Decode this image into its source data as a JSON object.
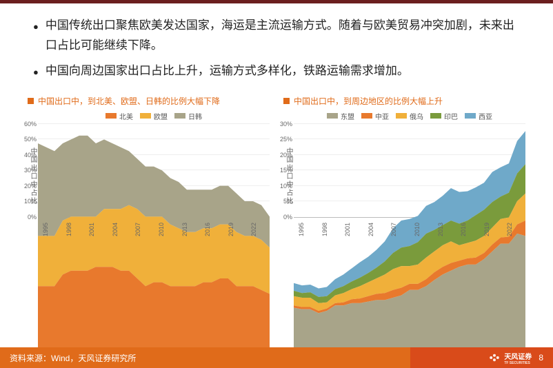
{
  "bullets": [
    "中国传统出口聚焦欧美发达国家，海运是主流运输方式。随着与欧美贸易冲突加剧，未来出口占比可能继续下降。",
    "中国向周边国家出口占比上升，运输方式多样化，铁路运输需求增加。"
  ],
  "chart1": {
    "title": "中国出口中，到北美、欧盟、日韩的比例大幅下降",
    "ylabel": "中国出口中占比",
    "type": "area-stacked",
    "years": [
      1995,
      1996,
      1997,
      1998,
      1999,
      2000,
      2001,
      2002,
      2003,
      2004,
      2005,
      2006,
      2007,
      2008,
      2009,
      2010,
      2011,
      2012,
      2013,
      2014,
      2015,
      2016,
      2017,
      2018,
      2019,
      2020,
      2021,
      2022,
      2023
    ],
    "xticks": [
      1995,
      1998,
      2001,
      2004,
      2007,
      2010,
      2013,
      2016,
      2019,
      2022
    ],
    "ylim": [
      0,
      60
    ],
    "ytick_step": 10,
    "ytick_suffix": "%",
    "grid_color": "#eeeeee",
    "series": [
      {
        "name": "北美",
        "color": "#e8792d",
        "values": [
          18,
          18,
          18,
          21,
          22,
          22,
          22,
          23,
          23,
          23,
          22,
          22,
          20,
          18,
          19,
          19,
          18,
          18,
          18,
          18,
          19,
          19,
          20,
          20,
          18,
          18,
          18,
          17,
          16
        ]
      },
      {
        "name": "欧盟",
        "color": "#f0b03a",
        "values": [
          13,
          13,
          13,
          14,
          14,
          14,
          14,
          13,
          15,
          15,
          16,
          17,
          18,
          18,
          17,
          17,
          16,
          15,
          14,
          14,
          14,
          14,
          14,
          14,
          14,
          13,
          13,
          13,
          12
        ]
      },
      {
        "name": "日韩",
        "color": "#a8a489",
        "values": [
          24,
          23,
          22,
          20,
          20,
          21,
          21,
          19,
          18,
          17,
          16,
          14,
          13,
          13,
          13,
          12,
          12,
          12,
          11,
          11,
          10,
          10,
          10,
          10,
          10,
          9,
          9,
          9,
          8
        ]
      }
    ]
  },
  "chart2": {
    "title": "中国出口中，到周边地区的比例大幅上升",
    "ylabel": "中国出口中占比",
    "type": "area-stacked",
    "years": [
      1995,
      1996,
      1997,
      1998,
      1999,
      2000,
      2001,
      2002,
      2003,
      2004,
      2005,
      2006,
      2007,
      2008,
      2009,
      2010,
      2011,
      2012,
      2013,
      2014,
      2015,
      2016,
      2017,
      2018,
      2019,
      2020,
      2021,
      2022,
      2023
    ],
    "xticks": [
      1995,
      1998,
      2001,
      2004,
      2007,
      2010,
      2013,
      2016,
      2019,
      2022
    ],
    "ylim": [
      0,
      30
    ],
    "ytick_step": 5,
    "ytick_suffix": "%",
    "grid_color": "#eeeeee",
    "series": [
      {
        "name": "东盟",
        "color": "#a8a489",
        "values": [
          6.2,
          6.0,
          6.0,
          5.5,
          5.8,
          6.5,
          6.5,
          6.8,
          6.8,
          7.0,
          7.2,
          7.2,
          7.5,
          7.8,
          8.5,
          8.5,
          9.0,
          9.8,
          10.5,
          11.0,
          11.5,
          11.8,
          11.8,
          12.5,
          13.5,
          14.5,
          14.5,
          15.8,
          15.5
        ]
      },
      {
        "name": "中亚",
        "color": "#e8792d",
        "values": [
          0.3,
          0.3,
          0.3,
          0.3,
          0.3,
          0.3,
          0.4,
          0.5,
          0.6,
          0.7,
          0.8,
          0.9,
          1.0,
          1.0,
          0.8,
          0.8,
          0.9,
          1.0,
          1.0,
          1.0,
          0.8,
          0.8,
          0.9,
          0.8,
          0.9,
          0.8,
          0.9,
          1.2,
          2.0
        ]
      },
      {
        "name": "俄乌",
        "color": "#f0b03a",
        "values": [
          1.2,
          1.2,
          1.2,
          1.0,
          0.8,
          1.0,
          1.2,
          1.3,
          1.6,
          1.8,
          2.0,
          2.4,
          2.7,
          2.8,
          2.3,
          2.5,
          2.8,
          2.7,
          2.8,
          2.8,
          2.0,
          2.0,
          2.2,
          2.2,
          2.2,
          2.4,
          2.5,
          3.0,
          3.5
        ]
      },
      {
        "name": "印巴",
        "color": "#7a9b3c",
        "values": [
          0.7,
          0.6,
          0.7,
          0.8,
          0.8,
          0.8,
          0.9,
          1.0,
          1.1,
          1.2,
          1.4,
          1.7,
          2.1,
          2.4,
          2.6,
          2.9,
          3.1,
          2.8,
          2.6,
          2.7,
          2.8,
          2.9,
          3.3,
          3.4,
          3.3,
          2.9,
          3.2,
          3.6,
          3.8
        ]
      },
      {
        "name": "西亚",
        "color": "#6fa9c9",
        "values": [
          1.0,
          1.0,
          1.0,
          1.1,
          1.2,
          1.3,
          1.5,
          1.7,
          2.0,
          2.1,
          2.3,
          2.6,
          3.2,
          3.5,
          3.5,
          3.4,
          3.6,
          3.6,
          3.8,
          4.2,
          4.1,
          3.8,
          3.6,
          3.5,
          3.9,
          3.8,
          3.8,
          4.2,
          4.3
        ]
      }
    ]
  },
  "footer": {
    "source": "资料来源：Wind，天风证券研究所",
    "brand": "天风证券",
    "brand_sub": "TF SECURITIES",
    "page": "8",
    "bg_left": "#e06b1a",
    "bg_right": "#d94b1a"
  },
  "accent_color": "#6b1f1f"
}
